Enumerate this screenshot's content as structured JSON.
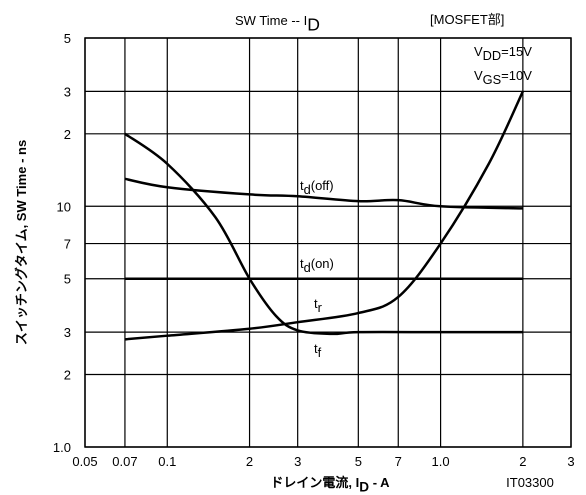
{
  "chart_data": {
    "type": "line",
    "title": [
      "SW Time  --  I",
      "D"
    ],
    "annotations": [
      [
        "[MOSFET部]"
      ],
      [
        "V",
        "DD",
        "=15V"
      ],
      [
        "V",
        "GS",
        "=10V"
      ],
      [
        "IT03300"
      ]
    ],
    "ylabel": [
      "スイッチングタイム, SW Time - ns"
    ],
    "xlabel": [
      "ドレイン電流, I",
      "D",
      " - A"
    ],
    "log_x": true,
    "log_y": true,
    "grid": true,
    "xlim": [
      0.05,
      3
    ],
    "ylim": [
      1,
      50
    ],
    "xticks": [
      0.05,
      0.07,
      0.1,
      {
        "value": 0.2,
        "label": "2"
      },
      {
        "value": 0.3,
        "label": "3"
      },
      {
        "value": 0.5,
        "label": "5"
      },
      {
        "value": 0.7,
        "label": "7"
      },
      {
        "value": 1,
        "label": "1.0"
      },
      2,
      3
    ],
    "yticks": [
      {
        "value": 1,
        "label": "1.0"
      },
      2,
      3,
      5,
      7,
      10,
      {
        "value": 20,
        "label": "2"
      },
      {
        "value": 30,
        "label": "3"
      },
      {
        "value": 50,
        "label": "5"
      }
    ],
    "series": [
      {
        "name": [
          "t",
          "d",
          "(off)"
        ],
        "color": "#000000",
        "x": [
          0.07,
          0.1,
          0.2,
          0.3,
          0.5,
          0.7,
          1.0,
          2
        ],
        "values": [
          13,
          12,
          11.2,
          11,
          10.5,
          10.6,
          10,
          9.8
        ]
      },
      {
        "name": [
          "t",
          "d",
          "(on)"
        ],
        "color": "#000000",
        "x": [
          0.07,
          2
        ],
        "values": [
          5,
          5
        ]
      },
      {
        "name": [
          "t",
          "r"
        ],
        "color": "#000000",
        "x": [
          0.07,
          0.1,
          0.2,
          0.3,
          0.5,
          0.7,
          1.0,
          1.5,
          2
        ],
        "values": [
          2.8,
          2.9,
          3.1,
          3.3,
          3.6,
          4.2,
          7,
          15,
          30
        ]
      },
      {
        "name": [
          "t",
          "f"
        ],
        "color": "#000000",
        "x": [
          0.07,
          0.1,
          0.15,
          0.2,
          0.25,
          0.3,
          0.4,
          0.5,
          1,
          2
        ],
        "values": [
          20,
          15,
          9,
          5,
          3.5,
          3.05,
          2.95,
          3,
          3,
          3
        ]
      }
    ]
  }
}
